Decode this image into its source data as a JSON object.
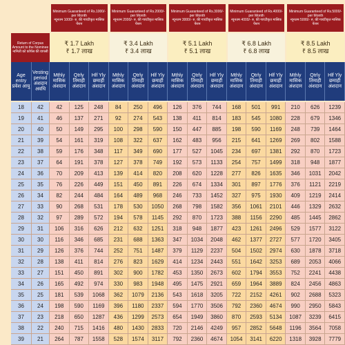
{
  "header": {
    "groups": [
      {
        "english": "Minimum Guaranteed of Rs.1000/- per Month",
        "hindi": "न्यूनतम 1000/- रु. की गारंटीकृत मासिक पेंशन"
      },
      {
        "english": "Minimum Guaranteed of Rs.2000/- per Month",
        "hindi": "न्यूनतम 2000/- रु. की गारंटीकृत मासिक पेंशन"
      },
      {
        "english": "Minimum Guaranteed of Rs.3000/- per Month",
        "hindi": "न्यूनतम 3000/- रु. की गारंटीकृत मासिक पेंशन"
      },
      {
        "english": "Minimum Guaranteed of Rs.4000/- per Month",
        "hindi": "न्यूनतम 4000/- रु. की गारंटीकृत मासिक पेंशन"
      },
      {
        "english": "Minimum Guaranteed of Rs.5000/- per Month",
        "hindi": "न्यूनतम 5000/- रु. की गारंटीकृत मासिक पेंशन"
      }
    ]
  },
  "corpus": {
    "label": "Return of Corpus Amount to the Nominee",
    "label_hindi": "नामिती को कॉर्पस की वापसी",
    "values": [
      {
        "english": "₹ 1.7 Lakh",
        "hindi": "₹ 1.7 लाख"
      },
      {
        "english": "₹ 3.4 Lakh",
        "hindi": "₹ 3.4 लाख"
      },
      {
        "english": "₹ 5.1 Lakh",
        "hindi": "₹ 5.1 लाख"
      },
      {
        "english": "₹ 6.8 Lakh",
        "hindi": "₹ 6.8 लाख"
      },
      {
        "english": "₹ 8.5 Lakh",
        "hindi": "₹ 8.5 लाख"
      }
    ]
  },
  "columns": {
    "age": {
      "english": "Age entry",
      "hindi": "प्रवेश आयु"
    },
    "vesting": {
      "english": "Vesting period",
      "hindi": "अंशदान अवधि"
    },
    "sub": [
      {
        "english": "Mthly",
        "hindi": "मासिक अंशदान"
      },
      {
        "english": "Qtrly",
        "hindi": "तिमाही अंशदान"
      },
      {
        "english": "Hlf Yly",
        "hindi": "छमाही अंशदान"
      }
    ]
  },
  "table": {
    "rows": [
      [
        18,
        42,
        42,
        125,
        248,
        84,
        250,
        496,
        126,
        376,
        744,
        168,
        501,
        991,
        210,
        626,
        1239
      ],
      [
        19,
        41,
        46,
        137,
        271,
        92,
        274,
        543,
        138,
        411,
        814,
        183,
        545,
        1080,
        228,
        679,
        1346
      ],
      [
        20,
        40,
        50,
        149,
        295,
        100,
        298,
        590,
        150,
        447,
        885,
        198,
        590,
        1169,
        248,
        739,
        1464
      ],
      [
        21,
        39,
        54,
        161,
        319,
        108,
        322,
        637,
        162,
        483,
        956,
        215,
        641,
        1269,
        269,
        802,
        1588
      ],
      [
        22,
        38,
        59,
        176,
        348,
        117,
        349,
        690,
        177,
        527,
        1045,
        234,
        697,
        1381,
        292,
        870,
        1723
      ],
      [
        23,
        37,
        64,
        191,
        378,
        127,
        378,
        749,
        192,
        573,
        1133,
        254,
        757,
        1499,
        318,
        948,
        1877
      ],
      [
        24,
        36,
        70,
        209,
        413,
        139,
        414,
        820,
        208,
        620,
        1228,
        277,
        826,
        1635,
        346,
        1031,
        2042
      ],
      [
        25,
        35,
        76,
        226,
        449,
        151,
        450,
        891,
        226,
        674,
        1334,
        301,
        897,
        1776,
        376,
        1121,
        2219
      ],
      [
        26,
        34,
        82,
        244,
        484,
        164,
        489,
        968,
        246,
        733,
        1452,
        327,
        975,
        1930,
        409,
        1219,
        2414
      ],
      [
        27,
        33,
        90,
        268,
        531,
        178,
        530,
        1050,
        268,
        798,
        1582,
        356,
        1061,
        2101,
        446,
        1329,
        2632
      ],
      [
        28,
        32,
        97,
        289,
        572,
        194,
        578,
        1145,
        292,
        870,
        1723,
        388,
        1156,
        2290,
        485,
        1445,
        2862
      ],
      [
        29,
        31,
        106,
        316,
        626,
        212,
        632,
        1251,
        318,
        948,
        1877,
        423,
        1261,
        2496,
        529,
        1577,
        3122
      ],
      [
        30,
        30,
        116,
        346,
        685,
        231,
        688,
        1363,
        347,
        1034,
        2048,
        462,
        1377,
        2727,
        577,
        1720,
        3405
      ],
      [
        31,
        29,
        126,
        376,
        744,
        252,
        751,
        1487,
        379,
        1129,
        2237,
        504,
        1502,
        2974,
        630,
        1878,
        3718
      ],
      [
        32,
        28,
        138,
        411,
        814,
        276,
        823,
        1629,
        414,
        1234,
        2443,
        551,
        1642,
        3253,
        689,
        2053,
        4066
      ],
      [
        33,
        27,
        151,
        450,
        891,
        302,
        900,
        1782,
        453,
        1350,
        2673,
        602,
        1794,
        3553,
        752,
        2241,
        4438
      ],
      [
        34,
        26,
        165,
        492,
        974,
        330,
        983,
        1948,
        495,
        1475,
        2921,
        659,
        1964,
        3889,
        824,
        2456,
        4863
      ],
      [
        35,
        25,
        181,
        539,
        1068,
        362,
        1079,
        2136,
        543,
        1618,
        3205,
        722,
        2152,
        4261,
        902,
        2688,
        5323
      ],
      [
        36,
        24,
        198,
        590,
        1169,
        396,
        1180,
        2337,
        594,
        1770,
        3506,
        792,
        2360,
        4674,
        990,
        2950,
        5843
      ],
      [
        37,
        23,
        218,
        650,
        1287,
        436,
        1299,
        2573,
        654,
        1949,
        3860,
        870,
        2593,
        5134,
        1087,
        3239,
        6415
      ],
      [
        38,
        22,
        240,
        715,
        1416,
        480,
        1430,
        2833,
        720,
        2146,
        4249,
        957,
        2852,
        5648,
        1196,
        3564,
        7058
      ],
      [
        39,
        21,
        264,
        787,
        1558,
        528,
        1574,
        3117,
        792,
        2360,
        4674,
        1054,
        3141,
        6220,
        1318,
        3928,
        7779
      ]
    ]
  }
}
